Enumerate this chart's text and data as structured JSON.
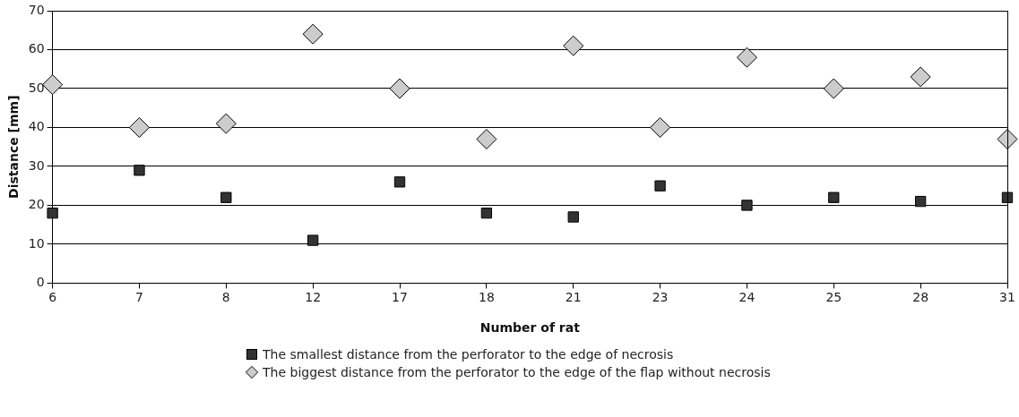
{
  "chart_data": {
    "type": "scatter",
    "xlabel": "Number of rat",
    "ylabel": "Distance [mm]",
    "categories": [
      "6",
      "7",
      "8",
      "12",
      "17",
      "18",
      "21",
      "23",
      "24",
      "25",
      "28",
      "31"
    ],
    "series": [
      {
        "name": "The smallest distance from the perforator to the edge of necrosis",
        "color": "#333333",
        "marker": "square",
        "values": [
          18,
          29,
          22,
          11,
          26,
          18,
          17,
          25,
          20,
          22,
          21,
          22
        ]
      },
      {
        "name": "The biggest distance from the perforator to the edge of the flap without necrosis",
        "color": "#cccccc",
        "marker": "diamond",
        "values": [
          51,
          40,
          41,
          64,
          50,
          37,
          61,
          40,
          58,
          50,
          53,
          37
        ]
      }
    ],
    "ylim": [
      0,
      70
    ],
    "yticks": [
      0,
      10,
      20,
      30,
      40,
      50,
      60,
      70
    ],
    "grid": "y",
    "legend": "bottom"
  }
}
